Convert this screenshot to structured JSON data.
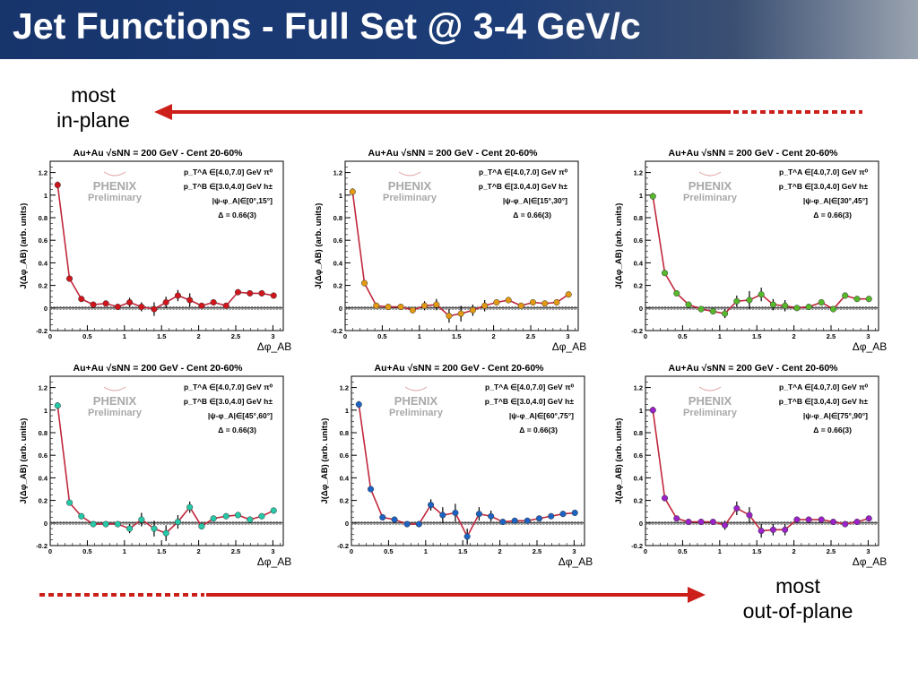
{
  "header": {
    "title": "Jet Functions - Full Set @ 3-4 GeV/c"
  },
  "captions": {
    "top": [
      "most",
      "in-plane"
    ],
    "bottom": [
      "most",
      "out-of-plane"
    ]
  },
  "colors": {
    "arrow": "#cc1f1a",
    "line": "#c0283c",
    "header": "#17346b"
  },
  "chart_data": [
    {
      "type": "line",
      "title": "Au+Au √sNN = 200 GeV - Cent 20-60%",
      "logo": [
        "PHENIX",
        "Preliminary"
      ],
      "ylabel": "J(Δφ_AB) (arb. units)",
      "xlabel": "Δφ_AB",
      "xlim": [
        0,
        3.14
      ],
      "ylim": [
        -0.2,
        1.3
      ],
      "xticks": [
        "0",
        "0.5",
        "1",
        "1.5",
        "2",
        "2.5",
        "3"
      ],
      "yticks": [
        "-0.2",
        "0",
        "0.2",
        "0.4",
        "0.6",
        "0.8",
        "1",
        "1.2"
      ],
      "legend": [
        "p_T^A ∈[4.0,7.0] GeV π⁰",
        "p_T^B ∈[3.0,4.0] GeV h±",
        "|ψ-φ_A|∈[0°,15°]",
        "Δ = 0.66(3)"
      ],
      "marker_color": "#d0161c",
      "x": [
        0.1,
        0.26,
        0.42,
        0.58,
        0.75,
        0.91,
        1.07,
        1.23,
        1.4,
        1.56,
        1.72,
        1.88,
        2.04,
        2.2,
        2.37,
        2.53,
        2.69,
        2.85,
        3.01
      ],
      "y": [
        1.09,
        0.26,
        0.08,
        0.03,
        0.04,
        0.01,
        0.05,
        0.01,
        -0.01,
        0.05,
        0.11,
        0.07,
        0.02,
        0.05,
        0.02,
        0.14,
        0.13,
        0.13,
        0.11
      ],
      "yerr": [
        0.03,
        0.02,
        0.02,
        0.02,
        0.02,
        0.02,
        0.04,
        0.04,
        0.06,
        0.05,
        0.05,
        0.06,
        0.02,
        0.02,
        0.02,
        0.02,
        0.02,
        0.02,
        0.02
      ]
    },
    {
      "type": "line",
      "title": "Au+Au √sNN = 200 GeV - Cent 20-60%",
      "logo": [
        "PHENIX",
        "Preliminary"
      ],
      "ylabel": "J(Δφ_AB) (arb. units)",
      "xlabel": "Δφ_AB",
      "xlim": [
        0,
        3.14
      ],
      "ylim": [
        -0.2,
        1.3
      ],
      "xticks": [
        "0",
        "0.5",
        "1",
        "1.5",
        "2",
        "2.5",
        "3"
      ],
      "yticks": [
        "-0.2",
        "0",
        "0.2",
        "0.4",
        "0.6",
        "0.8",
        "1",
        "1.2"
      ],
      "legend": [
        "p_T^A ∈[4.0,7.0] GeV π⁰",
        "p_T^B ∈[3.0,4.0] GeV h±",
        "|ψ-φ_A|∈[15°,30°]",
        "Δ = 0.66(3)"
      ],
      "marker_color": "#e39a12",
      "x": [
        0.1,
        0.26,
        0.42,
        0.58,
        0.75,
        0.91,
        1.07,
        1.23,
        1.4,
        1.56,
        1.72,
        1.88,
        2.04,
        2.2,
        2.37,
        2.53,
        2.69,
        2.85,
        3.01
      ],
      "y": [
        1.03,
        0.22,
        0.02,
        0.01,
        0.01,
        -0.02,
        0.02,
        0.03,
        -0.07,
        -0.05,
        -0.02,
        0.02,
        0.05,
        0.07,
        0.02,
        0.05,
        0.04,
        0.05,
        0.12
      ],
      "yerr": [
        0.03,
        0.02,
        0.02,
        0.02,
        0.02,
        0.02,
        0.04,
        0.05,
        0.06,
        0.07,
        0.05,
        0.05,
        0.02,
        0.02,
        0.02,
        0.02,
        0.02,
        0.02,
        0.02
      ]
    },
    {
      "type": "line",
      "title": "Au+Au √sNN = 200 GeV - Cent 20-60%",
      "logo": [
        "PHENIX",
        "Preliminary"
      ],
      "ylabel": "J(Δφ_AB) (arb. units)",
      "xlabel": "Δφ_AB",
      "xlim": [
        0,
        3.14
      ],
      "ylim": [
        -0.2,
        1.3
      ],
      "xticks": [
        "0",
        "0.5",
        "1",
        "1.5",
        "2",
        "2.5",
        "3"
      ],
      "yticks": [
        "-0.2",
        "0",
        "0.2",
        "0.4",
        "0.6",
        "0.8",
        "1",
        "1.2"
      ],
      "legend": [
        "p_T^A ∈[4.0,7.0] GeV π⁰",
        "p_T^B ∈[3.0,4.0] GeV h±",
        "|ψ-φ_A|∈[30°,45°]",
        "Δ = 0.66(3)"
      ],
      "marker_color": "#56b82a",
      "x": [
        0.1,
        0.26,
        0.42,
        0.58,
        0.75,
        0.91,
        1.07,
        1.23,
        1.4,
        1.56,
        1.72,
        1.88,
        2.04,
        2.2,
        2.37,
        2.53,
        2.69,
        2.85,
        3.01
      ],
      "y": [
        0.99,
        0.31,
        0.13,
        0.03,
        -0.01,
        -0.03,
        -0.05,
        0.06,
        0.07,
        0.12,
        0.03,
        0.02,
        0.0,
        0.01,
        0.05,
        -0.01,
        0.11,
        0.08,
        0.08
      ],
      "yerr": [
        0.03,
        0.02,
        0.02,
        0.02,
        0.02,
        0.02,
        0.04,
        0.05,
        0.08,
        0.06,
        0.05,
        0.05,
        0.02,
        0.02,
        0.02,
        0.02,
        0.02,
        0.02,
        0.02
      ]
    },
    {
      "type": "line",
      "title": "Au+Au √sNN = 200 GeV - Cent 20-60%",
      "logo": [
        "PHENIX",
        "Preliminary"
      ],
      "ylabel": "J(Δφ_AB) (arb. units)",
      "xlabel": "Δφ_AB",
      "xlim": [
        0,
        3.14
      ],
      "ylim": [
        -0.2,
        1.3
      ],
      "xticks": [
        "0",
        "0.5",
        "1",
        "1.5",
        "2",
        "2.5",
        "3"
      ],
      "yticks": [
        "-0.2",
        "0",
        "0.2",
        "0.4",
        "0.6",
        "0.8",
        "1",
        "1.2"
      ],
      "legend": [
        "p_T^A ∈[4.0,7.0] GeV π⁰",
        "p_T^B ∈[3.0,4.0] GeV h±",
        "|ψ-φ_A|∈[45°,60°]",
        "Δ = 0.66(3)"
      ],
      "marker_color": "#27c8a8",
      "x": [
        0.1,
        0.26,
        0.42,
        0.58,
        0.75,
        0.91,
        1.07,
        1.23,
        1.4,
        1.56,
        1.72,
        1.88,
        2.04,
        2.2,
        2.37,
        2.53,
        2.69,
        2.85,
        3.01
      ],
      "y": [
        1.04,
        0.18,
        0.06,
        -0.01,
        -0.01,
        -0.01,
        -0.05,
        0.03,
        -0.05,
        -0.09,
        0.01,
        0.14,
        -0.03,
        0.04,
        0.06,
        0.07,
        0.03,
        0.06,
        0.11
      ],
      "yerr": [
        0.03,
        0.02,
        0.02,
        0.02,
        0.02,
        0.02,
        0.04,
        0.06,
        0.07,
        0.07,
        0.06,
        0.05,
        0.02,
        0.02,
        0.02,
        0.02,
        0.02,
        0.02,
        0.02
      ]
    },
    {
      "type": "line",
      "title": "Au+Au √sNN = 200 GeV - Cent 20-60%",
      "logo": [
        "PHENIX",
        "Preliminary"
      ],
      "ylabel": "J(Δφ_AB) (arb. units)",
      "xlabel": "Δφ_AB",
      "xlim": [
        0,
        3.14
      ],
      "ylim": [
        -0.2,
        1.3
      ],
      "xticks": [
        "0",
        "0.5",
        "1",
        "1.5",
        "2",
        "2.5",
        "3"
      ],
      "yticks": [
        "-0.2",
        "0",
        "0.2",
        "0.4",
        "0.6",
        "0.8",
        "1",
        "1.2"
      ],
      "legend": [
        "p_T^A ∈[4.0,7.0] GeV π⁰",
        "p_T^B ∈[3.0,4.0] GeV h±",
        "|ψ-φ_A|∈[60°,75°]",
        "Δ = 0.66(3)"
      ],
      "marker_color": "#1c63c4",
      "x": [
        0.1,
        0.26,
        0.42,
        0.58,
        0.75,
        0.91,
        1.07,
        1.23,
        1.4,
        1.56,
        1.72,
        1.88,
        2.04,
        2.2,
        2.37,
        2.53,
        2.69,
        2.85,
        3.01
      ],
      "y": [
        1.05,
        0.3,
        0.05,
        0.03,
        -0.01,
        -0.01,
        0.16,
        0.07,
        0.09,
        -0.12,
        0.08,
        0.06,
        0.01,
        0.02,
        0.02,
        0.04,
        0.06,
        0.08,
        0.09
      ],
      "yerr": [
        0.03,
        0.02,
        0.02,
        0.02,
        0.02,
        0.02,
        0.05,
        0.07,
        0.08,
        0.07,
        0.06,
        0.05,
        0.02,
        0.02,
        0.02,
        0.02,
        0.02,
        0.02,
        0.02
      ]
    },
    {
      "type": "line",
      "title": "Au+Au √sNN = 200 GeV - Cent 20-60%",
      "logo": [
        "PHENIX",
        "Preliminary"
      ],
      "ylabel": "J(Δφ_AB) (arb. units)",
      "xlabel": "Δφ_AB",
      "xlim": [
        0,
        3.14
      ],
      "ylim": [
        -0.2,
        1.3
      ],
      "xticks": [
        "0",
        "0.5",
        "1",
        "1.5",
        "2",
        "2.5",
        "3"
      ],
      "yticks": [
        "-0.2",
        "0",
        "0.2",
        "0.4",
        "0.6",
        "0.8",
        "1",
        "1.2"
      ],
      "legend": [
        "p_T^A ∈[4.0,7.0] GeV π⁰",
        "p_T^B ∈[3.0,4.0] GeV h±",
        "|ψ-φ_A|∈[75°,90°]",
        "Δ = 0.66(3)"
      ],
      "marker_color": "#9a22c8",
      "x": [
        0.1,
        0.26,
        0.42,
        0.58,
        0.75,
        0.91,
        1.07,
        1.23,
        1.4,
        1.56,
        1.72,
        1.88,
        2.04,
        2.2,
        2.37,
        2.53,
        2.69,
        2.85,
        3.01
      ],
      "y": [
        1.0,
        0.22,
        0.04,
        0.01,
        0.01,
        0.01,
        -0.02,
        0.13,
        0.07,
        -0.07,
        -0.06,
        -0.06,
        0.03,
        0.03,
        0.03,
        0.01,
        -0.01,
        0.01,
        0.04
      ],
      "yerr": [
        0.03,
        0.02,
        0.02,
        0.02,
        0.02,
        0.02,
        0.04,
        0.06,
        0.07,
        0.06,
        0.05,
        0.05,
        0.02,
        0.02,
        0.02,
        0.02,
        0.02,
        0.02,
        0.02
      ]
    }
  ]
}
